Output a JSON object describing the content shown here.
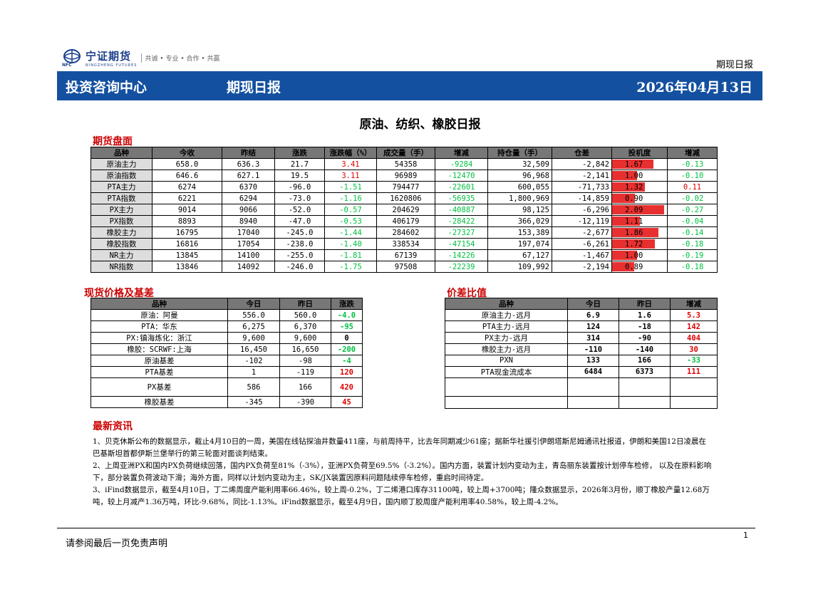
{
  "header": {
    "company_name": "宁证期货",
    "company_en": "NINGZHENG FUTURES",
    "logo_abbr": "NFC",
    "slogan": "共诚 • 专业 • 合作 • 共赢",
    "report_type": "期现日报"
  },
  "banner": {
    "left": "投资咨询中心",
    "middle": "期现日报",
    "date": "2026年04月13日"
  },
  "page_title": "原油、纺织、橡胶日报",
  "futures": {
    "section_title": "期货盘面",
    "headers": [
      "品种",
      "今收",
      "昨结",
      "涨跌",
      "涨跌幅（%）",
      "成交量（手）",
      "增减",
      "持仓量（手）",
      "仓差",
      "投机度",
      "增减"
    ],
    "rows": [
      {
        "name": "原油主力",
        "close": "658.0",
        "prev": "636.3",
        "chg": "21.7",
        "pct": "3.41",
        "vol": "54358",
        "vol_chg": "-9284",
        "oi": "32,509",
        "oi_chg": "-2,842",
        "spec": "1.67",
        "spec_level": 1.67,
        "spec_chg": "-0.13"
      },
      {
        "name": "原油指数",
        "close": "646.6",
        "prev": "627.1",
        "chg": "19.5",
        "pct": "3.11",
        "vol": "96989",
        "vol_chg": "-12470",
        "oi": "96,968",
        "oi_chg": "-2,141",
        "spec": "1.00",
        "spec_level": 1.0,
        "spec_chg": "-0.10"
      },
      {
        "name": "PTA主力",
        "close": "6274",
        "prev": "6370",
        "chg": "-96.0",
        "pct": "-1.51",
        "vol": "794477",
        "vol_chg": "-22601",
        "oi": "600,055",
        "oi_chg": "-71,733",
        "spec": "1.32",
        "spec_level": 1.32,
        "spec_chg": "0.11"
      },
      {
        "name": "PTA指数",
        "close": "6221",
        "prev": "6294",
        "chg": "-73.0",
        "pct": "-1.16",
        "vol": "1620806",
        "vol_chg": "-56935",
        "oi": "1,800,969",
        "oi_chg": "-14,859",
        "spec": "0.90",
        "spec_level": 0.9,
        "spec_chg": "-0.02"
      },
      {
        "name": "PX主力",
        "close": "9014",
        "prev": "9066",
        "chg": "-52.0",
        "pct": "-0.57",
        "vol": "204629",
        "vol_chg": "-40887",
        "oi": "98,125",
        "oi_chg": "-6,296",
        "spec": "2.09",
        "spec_level": 2.09,
        "spec_chg": "-0.27"
      },
      {
        "name": "PX指数",
        "close": "8893",
        "prev": "8940",
        "chg": "-47.0",
        "pct": "-0.53",
        "vol": "406179",
        "vol_chg": "-28422",
        "oi": "366,029",
        "oi_chg": "-12,119",
        "spec": "1.11",
        "spec_level": 1.11,
        "spec_chg": "-0.04"
      },
      {
        "name": "橡胶主力",
        "close": "16795",
        "prev": "17040",
        "chg": "-245.0",
        "pct": "-1.44",
        "vol": "284602",
        "vol_chg": "-27327",
        "oi": "153,389",
        "oi_chg": "-2,677",
        "spec": "1.86",
        "spec_level": 1.86,
        "spec_chg": "-0.14"
      },
      {
        "name": "橡胶指数",
        "close": "16816",
        "prev": "17054",
        "chg": "-238.0",
        "pct": "-1.40",
        "vol": "338534",
        "vol_chg": "-47154",
        "oi": "197,074",
        "oi_chg": "-6,261",
        "spec": "1.72",
        "spec_level": 1.72,
        "spec_chg": "-0.18"
      },
      {
        "name": "NR主力",
        "close": "13845",
        "prev": "14100",
        "chg": "-255.0",
        "pct": "-1.81",
        "vol": "67139",
        "vol_chg": "-14226",
        "oi": "67,127",
        "oi_chg": "-1,467",
        "spec": "1.00",
        "spec_level": 1.0,
        "spec_chg": "-0.19"
      },
      {
        "name": "NR指数",
        "close": "13846",
        "prev": "14092",
        "chg": "-246.0",
        "pct": "-1.75",
        "vol": "97508",
        "vol_chg": "-22239",
        "oi": "109,992",
        "oi_chg": "-2,194",
        "spec": "0.89",
        "spec_level": 0.89,
        "spec_chg": "-0.18"
      }
    ]
  },
  "spot": {
    "section_title": "现货价格及基差",
    "headers": [
      "品种",
      "今日",
      "昨日",
      "涨跌"
    ],
    "rows": [
      {
        "name": "原油：阿曼",
        "today": "556.0",
        "yesterday": "560.0",
        "chg": "-4.0"
      },
      {
        "name": "PTA：华东",
        "today": "6,275",
        "yesterday": "6,370",
        "chg": "-95"
      },
      {
        "name": "PX:镇海炼化：浙江",
        "today": "9,600",
        "yesterday": "9,600",
        "chg": "0"
      },
      {
        "name": "橡胶：SCRWF:上海",
        "today": "16,450",
        "yesterday": "16,650",
        "chg": "-200"
      },
      {
        "name": "原油基差",
        "today": "-102",
        "yesterday": "-98",
        "chg": "-4"
      },
      {
        "name": "PTA基差",
        "today": "1",
        "yesterday": "-119",
        "chg": "120"
      },
      {
        "name": "PX基差",
        "today": "586",
        "yesterday": "166",
        "chg": "420"
      },
      {
        "name": "橡胶基差",
        "today": "-345",
        "yesterday": "-390",
        "chg": "45"
      }
    ]
  },
  "spread": {
    "section_title": "价差比值",
    "headers": [
      "品种",
      "今日",
      "昨日",
      "增减"
    ],
    "rows": [
      {
        "name": "原油主力-远月",
        "today": "6.9",
        "yesterday": "1.6",
        "chg": "5.3"
      },
      {
        "name": "PTA主力-远月",
        "today": "124",
        "yesterday": "-18",
        "chg": "142"
      },
      {
        "name": "PX主力-远月",
        "today": "314",
        "yesterday": "-90",
        "chg": "404"
      },
      {
        "name": "橡胶主力-远月",
        "today": "-110",
        "yesterday": "-140",
        "chg": "30"
      },
      {
        "name": "PXN",
        "today": "133",
        "yesterday": "166",
        "chg": "-33"
      },
      {
        "name": "PTA现金流成本",
        "today": "6484",
        "yesterday": "6373",
        "chg": "111"
      },
      {
        "name": "",
        "today": "",
        "yesterday": "",
        "chg": ""
      },
      {
        "name": "",
        "today": "",
        "yesterday": "",
        "chg": ""
      }
    ]
  },
  "news": {
    "section_title": "最新资讯",
    "items": [
      "1、贝克休斯公布的数据显示，截止4月10日的一周，美国在线钻探油井数量411座，与前周持平，比去年同期减少61座；据新华社援引伊朗塔斯尼姆通讯社报道，伊朗和美国12日凌晨在巴基斯坦首都伊斯兰堡举行的第三轮面对面谈判结束。",
      "2、上周亚洲PX和国内PX负荷继续回落，国内PX负荷至81%（-3%），亚洲PX负荷至69.5%（-3.2%）。国内方面，装置计划内变动为主，青岛丽东装置按计划停车检修， 以及在原料影响下，部分装置负荷波动下滑；海外方面，同样以计划内变动为主，SK/JX装置因原料问题陆续停车检修，重启时间待定。",
      "3、iFind数据显示，截至4月10日，丁二烯周度产能利用率66.46%，较上周-0.2%，丁二烯港口库存31100吨，较上周+3700吨；隆众数据显示，2026年3月份，顺丁橡胶产量12.68万吨，较上月减产1.36万吨，环比-9.68%，同比-1.13%。iFind数据显示，截至4月9日，国内顺丁胶周度产能利用率40.58%，较上周-4.2%。"
    ]
  },
  "footer": {
    "disclaimer": "请参阅最后一页免责声明",
    "page_number": "1"
  },
  "colors": {
    "banner": "#1450a0",
    "up": "#e00000",
    "down": "#00c040",
    "section_title": "#c00000"
  }
}
